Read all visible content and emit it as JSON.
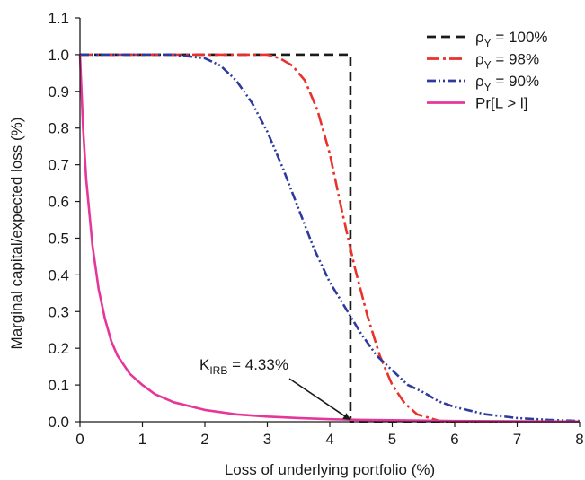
{
  "chart_data": {
    "type": "line",
    "xlabel": "Loss of underlying portfolio (%)",
    "ylabel": "Marginal capital/expected loss (%)",
    "xlim": [
      0,
      8
    ],
    "ylim": [
      0,
      1.1
    ],
    "x_ticks": [
      "0",
      "1",
      "2",
      "3",
      "4",
      "5",
      "6",
      "7",
      "8"
    ],
    "y_ticks": [
      "0.0",
      "0.1",
      "0.2",
      "0.3",
      "0.4",
      "0.5",
      "0.6",
      "0.7",
      "0.8",
      "0.9",
      "1.0",
      "1.1"
    ],
    "grid": false,
    "legend_position": "top-right",
    "series": [
      {
        "name": "ρY = 100%",
        "legend_main": "ρ",
        "legend_sub": "Y",
        "legend_rest": " = 100%",
        "color": "#1a1a1a",
        "style": "dashed",
        "x": [
          0,
          4.33,
          4.33,
          8
        ],
        "y": [
          1.0,
          1.0,
          0.0,
          0.0
        ]
      },
      {
        "name": "ρY = 98%",
        "legend_main": "ρ",
        "legend_sub": "Y",
        "legend_rest": " = 98%",
        "color": "#e8322b",
        "style": "dash-dot",
        "x": [
          0,
          2.5,
          3.0,
          3.2,
          3.4,
          3.6,
          3.8,
          4.0,
          4.2,
          4.4,
          4.6,
          4.8,
          5.0,
          5.2,
          5.4,
          5.6,
          5.8,
          6.0,
          8
        ],
        "y": [
          1.0,
          1.0,
          1.0,
          0.99,
          0.97,
          0.93,
          0.85,
          0.73,
          0.57,
          0.42,
          0.29,
          0.18,
          0.1,
          0.05,
          0.02,
          0.01,
          0.0,
          0.0,
          0.0
        ]
      },
      {
        "name": "ρY = 90%",
        "legend_main": "ρ",
        "legend_sub": "Y",
        "legend_rest": " = 90%",
        "color": "#2e3a9e",
        "style": "dash-dot-dot",
        "x": [
          0,
          1.0,
          1.5,
          2.0,
          2.25,
          2.5,
          2.75,
          3.0,
          3.25,
          3.5,
          3.75,
          4.0,
          4.25,
          4.5,
          4.75,
          5.0,
          5.25,
          5.5,
          5.75,
          6.0,
          6.5,
          7.0,
          7.5,
          8.0
        ],
        "y": [
          1.0,
          1.0,
          1.0,
          0.99,
          0.97,
          0.93,
          0.87,
          0.79,
          0.69,
          0.58,
          0.47,
          0.38,
          0.31,
          0.24,
          0.18,
          0.14,
          0.1,
          0.08,
          0.055,
          0.04,
          0.02,
          0.01,
          0.005,
          0.002
        ]
      },
      {
        "name": "Pr[L > l]",
        "legend_main": "Pr[L > l]",
        "legend_sub": "",
        "legend_rest": "",
        "color": "#e5369a",
        "style": "solid",
        "x": [
          0,
          0.05,
          0.1,
          0.2,
          0.3,
          0.4,
          0.5,
          0.6,
          0.8,
          1.0,
          1.2,
          1.5,
          2.0,
          2.5,
          3.0,
          3.5,
          4.0,
          4.5,
          5.0,
          6.0,
          7.0,
          8.0
        ],
        "y": [
          1.0,
          0.8,
          0.66,
          0.48,
          0.36,
          0.28,
          0.22,
          0.18,
          0.13,
          0.1,
          0.075,
          0.053,
          0.032,
          0.02,
          0.014,
          0.01,
          0.007,
          0.005,
          0.004,
          0.002,
          0.001,
          0.0005
        ]
      }
    ],
    "annotation": {
      "main": "K",
      "sub": "IRB",
      "rest": " = 4.33%",
      "x": 4.33,
      "y": 0.0
    }
  }
}
